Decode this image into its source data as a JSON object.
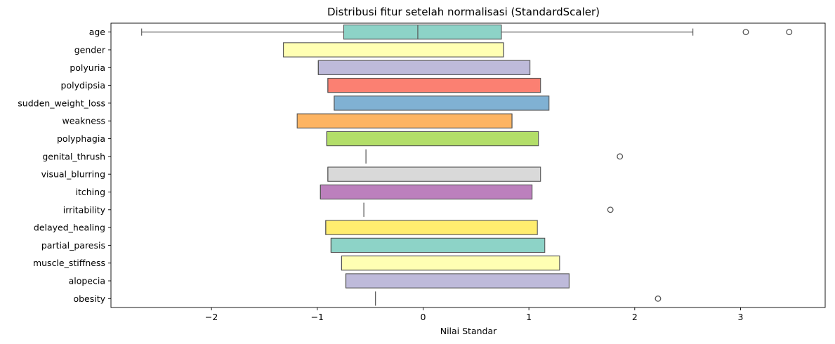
{
  "chart_data": {
    "type": "boxplot",
    "orientation": "horizontal",
    "title": "Distribusi fitur setelah normalisasi (StandardScaler)",
    "xlabel": "Nilai Standar",
    "ylabel": "",
    "xlim": [
      -2.95,
      3.8
    ],
    "xticks": [
      -2,
      -1,
      0,
      1,
      2,
      3
    ],
    "xtick_labels": [
      "−2",
      "−1",
      "0",
      "1",
      "2",
      "3"
    ],
    "grid": false,
    "legend": "none",
    "categories": [
      "age",
      "gender",
      "polyuria",
      "polydipsia",
      "sudden_weight_loss",
      "weakness",
      "polyphagia",
      "genital_thrush",
      "visual_blurring",
      "itching",
      "irritability",
      "delayed_healing",
      "partial_paresis",
      "muscle_stiffness",
      "alopecia",
      "obesity"
    ],
    "series": [
      {
        "label": "age",
        "q1": -0.75,
        "median": -0.05,
        "q3": 0.74,
        "whisker_low": -2.66,
        "whisker_high": 2.55,
        "outliers": [
          3.05,
          3.46
        ],
        "color": "#8dd3c7"
      },
      {
        "label": "gender",
        "q1": -1.32,
        "median": 0.76,
        "q3": 0.76,
        "whisker_low": -1.32,
        "whisker_high": 0.76,
        "outliers": [],
        "color": "#ffffb3"
      },
      {
        "label": "polyuria",
        "q1": -0.99,
        "median": -0.99,
        "q3": 1.01,
        "whisker_low": -0.99,
        "whisker_high": 1.01,
        "outliers": [],
        "color": "#bebada"
      },
      {
        "label": "polydipsia",
        "q1": -0.9,
        "median": -0.9,
        "q3": 1.11,
        "whisker_low": -0.9,
        "whisker_high": 1.11,
        "outliers": [],
        "color": "#fb8072"
      },
      {
        "label": "sudden_weight_loss",
        "q1": -0.84,
        "median": -0.84,
        "q3": 1.19,
        "whisker_low": -0.84,
        "whisker_high": 1.19,
        "outliers": [],
        "color": "#80b1d3"
      },
      {
        "label": "weakness",
        "q1": -1.19,
        "median": 0.84,
        "q3": 0.84,
        "whisker_low": -1.19,
        "whisker_high": 0.84,
        "outliers": [],
        "color": "#fdb462"
      },
      {
        "label": "polyphagia",
        "q1": -0.91,
        "median": -0.91,
        "q3": 1.09,
        "whisker_low": -0.91,
        "whisker_high": 1.09,
        "outliers": [],
        "color": "#b3de69"
      },
      {
        "label": "genital_thrush",
        "q1": -0.54,
        "median": -0.54,
        "q3": -0.54,
        "whisker_low": -0.54,
        "whisker_high": -0.54,
        "outliers": [
          1.86
        ],
        "color": "#fccde5"
      },
      {
        "label": "visual_blurring",
        "q1": -0.9,
        "median": -0.9,
        "q3": 1.11,
        "whisker_low": -0.9,
        "whisker_high": 1.11,
        "outliers": [],
        "color": "#d9d9d9"
      },
      {
        "label": "itching",
        "q1": -0.97,
        "median": -0.97,
        "q3": 1.03,
        "whisker_low": -0.97,
        "whisker_high": 1.03,
        "outliers": [],
        "color": "#bc80bd"
      },
      {
        "label": "irritability",
        "q1": -0.56,
        "median": -0.56,
        "q3": -0.56,
        "whisker_low": -0.56,
        "whisker_high": -0.56,
        "outliers": [
          1.77
        ],
        "color": "#ccebc5"
      },
      {
        "label": "delayed_healing",
        "q1": -0.92,
        "median": -0.92,
        "q3": 1.08,
        "whisker_low": -0.92,
        "whisker_high": 1.08,
        "outliers": [],
        "color": "#ffed6f"
      },
      {
        "label": "partial_paresis",
        "q1": -0.87,
        "median": -0.87,
        "q3": 1.15,
        "whisker_low": -0.87,
        "whisker_high": 1.15,
        "outliers": [],
        "color": "#8dd3c7"
      },
      {
        "label": "muscle_stiffness",
        "q1": -0.77,
        "median": -0.77,
        "q3": 1.29,
        "whisker_low": -0.77,
        "whisker_high": 1.29,
        "outliers": [],
        "color": "#ffffb3"
      },
      {
        "label": "alopecia",
        "q1": -0.73,
        "median": -0.73,
        "q3": 1.38,
        "whisker_low": -0.73,
        "whisker_high": 1.38,
        "outliers": [],
        "color": "#bebada"
      },
      {
        "label": "obesity",
        "q1": -0.45,
        "median": -0.45,
        "q3": -0.45,
        "whisker_low": -0.45,
        "whisker_high": -0.45,
        "outliers": [
          2.22
        ],
        "color": "#fb8072"
      }
    ]
  }
}
